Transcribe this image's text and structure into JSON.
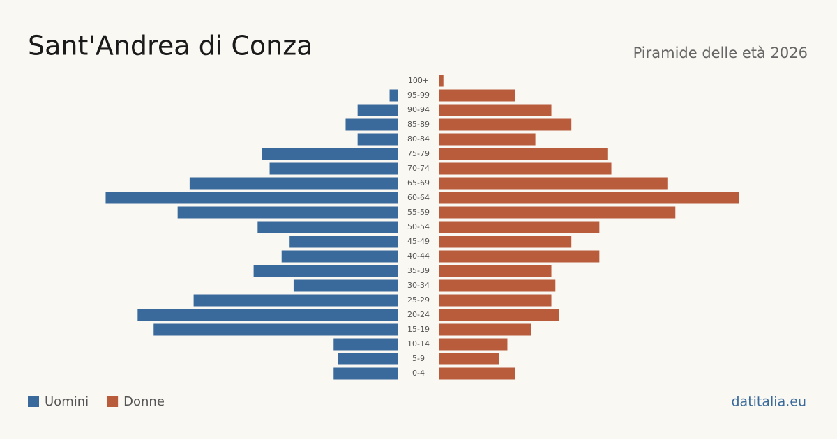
{
  "chart_data": {
    "type": "pyramid",
    "title": "Sant'Andrea di Conza",
    "subtitle": "Piramide delle età 2026",
    "source": "datitalia.eu",
    "categories": [
      "100+",
      "95-99",
      "90-94",
      "85-89",
      "80-84",
      "75-79",
      "70-74",
      "65-69",
      "60-64",
      "55-59",
      "50-54",
      "45-49",
      "40-44",
      "35-39",
      "30-34",
      "25-29",
      "20-24",
      "15-19",
      "10-14",
      "5-9",
      "0-4"
    ],
    "series": [
      {
        "name": "Uomini",
        "color": "#3a6a9b",
        "values": [
          0,
          2,
          10,
          13,
          10,
          34,
          32,
          52,
          73,
          55,
          35,
          27,
          29,
          36,
          26,
          51,
          65,
          61,
          16,
          15,
          16
        ]
      },
      {
        "name": "Donne",
        "color": "#b95c3c",
        "values": [
          1,
          19,
          28,
          33,
          24,
          42,
          43,
          57,
          75,
          59,
          40,
          33,
          40,
          28,
          29,
          28,
          30,
          23,
          17,
          15,
          19
        ]
      }
    ]
  }
}
